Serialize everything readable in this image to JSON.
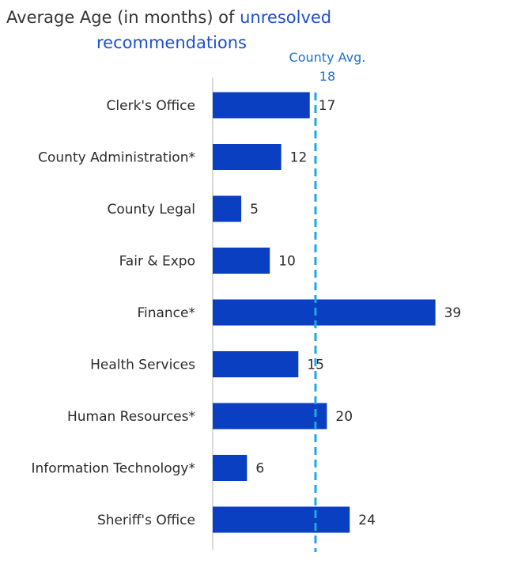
{
  "title": {
    "prefix": "Average Age (in months) of ",
    "accent_word": "unresolved",
    "line2": "recommendations"
  },
  "colors": {
    "bar": "#0b3fc2",
    "avg_line": "#22a6e6",
    "axis": "#b5b5b5",
    "accent": "#1f4ecf"
  },
  "chart_data": {
    "type": "bar",
    "orientation": "horizontal",
    "title": "Average Age (in months) of unresolved recommendations",
    "categories": [
      "Clerk's Office",
      "County Administration*",
      "County Legal",
      "Fair & Expo",
      "Finance*",
      "Health Services",
      "Human Resources*",
      "Information Technology*",
      "Sheriff's Office"
    ],
    "values": [
      17,
      12,
      5,
      10,
      39,
      15,
      20,
      6,
      24
    ],
    "xlim": [
      0,
      50
    ],
    "grid": false,
    "reference_line": {
      "label": "County Avg.",
      "value": 18,
      "value_label": "18",
      "style": "dashed"
    },
    "xlabel": "",
    "ylabel": ""
  }
}
